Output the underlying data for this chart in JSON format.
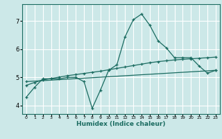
{
  "title": "",
  "xlabel": "Humidex (Indice chaleur)",
  "bg_color": "#cce8e8",
  "grid_color": "#ffffff",
  "line_color": "#1a6b60",
  "xlim": [
    -0.5,
    23.5
  ],
  "ylim": [
    3.7,
    7.6
  ],
  "xticks": [
    0,
    1,
    2,
    3,
    4,
    5,
    6,
    7,
    8,
    9,
    10,
    11,
    12,
    13,
    14,
    15,
    16,
    17,
    18,
    19,
    20,
    21,
    22,
    23
  ],
  "yticks": [
    4,
    5,
    6,
    7
  ],
  "line1_x": [
    0,
    1,
    2,
    3,
    4,
    5,
    6,
    7,
    8,
    9,
    10,
    11,
    12,
    13,
    14,
    15,
    16,
    17,
    18,
    19,
    20,
    21,
    22,
    23
  ],
  "line1_y": [
    4.3,
    4.65,
    4.95,
    4.95,
    4.95,
    5.0,
    5.0,
    4.85,
    3.9,
    4.55,
    5.25,
    5.45,
    6.45,
    7.05,
    7.25,
    6.85,
    6.3,
    6.05,
    5.7,
    5.7,
    5.7,
    5.4,
    5.15,
    5.25
  ],
  "line2_x": [
    0,
    1,
    2,
    3,
    4,
    5,
    6,
    7,
    8,
    9,
    10,
    11,
    12,
    13,
    14,
    15,
    16,
    17,
    18,
    19,
    20,
    21,
    22,
    23
  ],
  "line2_y": [
    4.72,
    4.82,
    4.91,
    4.96,
    5.01,
    5.06,
    5.1,
    5.14,
    5.18,
    5.22,
    5.27,
    5.32,
    5.37,
    5.42,
    5.47,
    5.52,
    5.56,
    5.59,
    5.62,
    5.64,
    5.66,
    5.68,
    5.7,
    5.72
  ],
  "line3_x": [
    0,
    23
  ],
  "line3_y": [
    4.85,
    5.25
  ]
}
